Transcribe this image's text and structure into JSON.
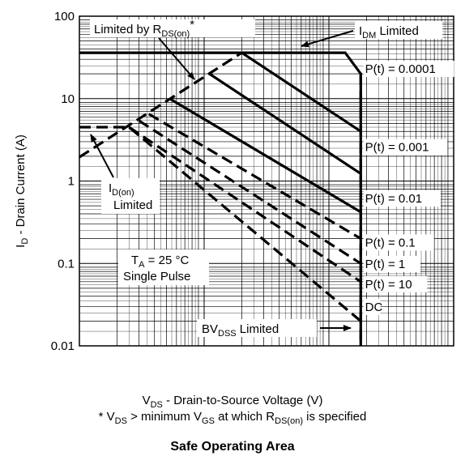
{
  "chart_data": {
    "type": "line",
    "title": "Safe Operating Area",
    "xlabel": {
      "main": "V",
      "sub": "DS",
      "rest": " - Drain-to-Source Voltage (V)"
    },
    "ylabel": {
      "main": "I",
      "sub": "D",
      "rest": " - Drain Current (A)"
    },
    "footnote": {
      "p1": "* V",
      "s1": "DS",
      "p2": " > minimum V",
      "s2": "GS",
      "p3": " at which R",
      "s3": "DS(on)",
      "p4": " is specified"
    },
    "x_scale": "log",
    "y_scale": "log",
    "xlim": [
      0.1,
      100
    ],
    "ylim": [
      0.01,
      100
    ],
    "x_ticks": [
      "0.1",
      "1",
      "10",
      "100"
    ],
    "y_ticks": [
      "0.01",
      "0.1",
      "1",
      "10",
      "100"
    ],
    "grid": true,
    "series": [
      {
        "label": "P(t) = 0.0001",
        "style": "solid",
        "points": [
          [
            0.1,
            36
          ],
          [
            13.5,
            36
          ],
          [
            18,
            20
          ],
          [
            18,
            0.01
          ]
        ]
      },
      {
        "label": "P(t) = 0.0001",
        "style": "solid",
        "points": [
          [
            2,
            36
          ],
          [
            18,
            4
          ]
        ]
      },
      {
        "label": "P(t) = 0.001",
        "style": "solid",
        "points": [
          [
            1.1,
            20
          ],
          [
            18,
            1.23
          ]
        ]
      },
      {
        "label": "P(t) = 0.01",
        "style": "solid",
        "points": [
          [
            0.54,
            9.8
          ],
          [
            18,
            0.42
          ]
        ]
      },
      {
        "label": "P(t) = 0.1",
        "style": "dashed",
        "points": [
          [
            0.36,
            6.5
          ],
          [
            18,
            0.2
          ]
        ]
      },
      {
        "label": "P(t) = 1",
        "style": "dashed",
        "points": [
          [
            0.3,
            5.4
          ],
          [
            18,
            0.1
          ]
        ]
      },
      {
        "label": "P(t) = 10",
        "style": "dashed",
        "points": [
          [
            0.25,
            4.5
          ],
          [
            18,
            0.06
          ]
        ]
      },
      {
        "label": "DC",
        "style": "dashed",
        "points": [
          [
            0.1,
            4.5
          ],
          [
            0.25,
            4.5
          ],
          [
            18,
            0.02
          ]
        ]
      },
      {
        "label": "Limited by R_DS(on)",
        "style": "dashed",
        "points": [
          [
            0.1,
            1.95
          ],
          [
            2,
            36
          ]
        ]
      },
      {
        "label": "BV_DSS Limited",
        "style": "dashed",
        "points": [
          [
            18,
            20
          ],
          [
            18,
            0.01
          ]
        ]
      }
    ],
    "point_labels": [
      {
        "text": "P(t) = 0.0001",
        "x": 19.5,
        "y": 20.5
      },
      {
        "text": "P(t) = 0.001",
        "x": 19.5,
        "y": 2.3
      },
      {
        "text": "P(t) = 0.01",
        "x": 19.5,
        "y": 0.55
      },
      {
        "text": "P(t) = 0.1",
        "x": 19.5,
        "y": 0.16
      },
      {
        "text": "P(t) = 1",
        "x": 19.5,
        "y": 0.088
      },
      {
        "text": "P(t) = 10",
        "x": 19.5,
        "y": 0.05
      },
      {
        "text": "DC",
        "x": 19.5,
        "y": 0.0265
      }
    ],
    "annotations": {
      "rdson": {
        "p1": "Limited by R",
        "s1": "DS(on)",
        "p2": "*"
      },
      "idm": {
        "p1": "I",
        "s1": "DM",
        "p2": " Limited"
      },
      "idon": {
        "p1": "I",
        "s1": "D(on)",
        "line2": "Limited"
      },
      "ta": {
        "p1": "T",
        "s1": "A",
        "p2": " = 25 °C",
        "line2": "Single Pulse"
      },
      "bvdss": {
        "p1": "BV",
        "s1": "DSS",
        "p2": " Limited"
      }
    }
  }
}
